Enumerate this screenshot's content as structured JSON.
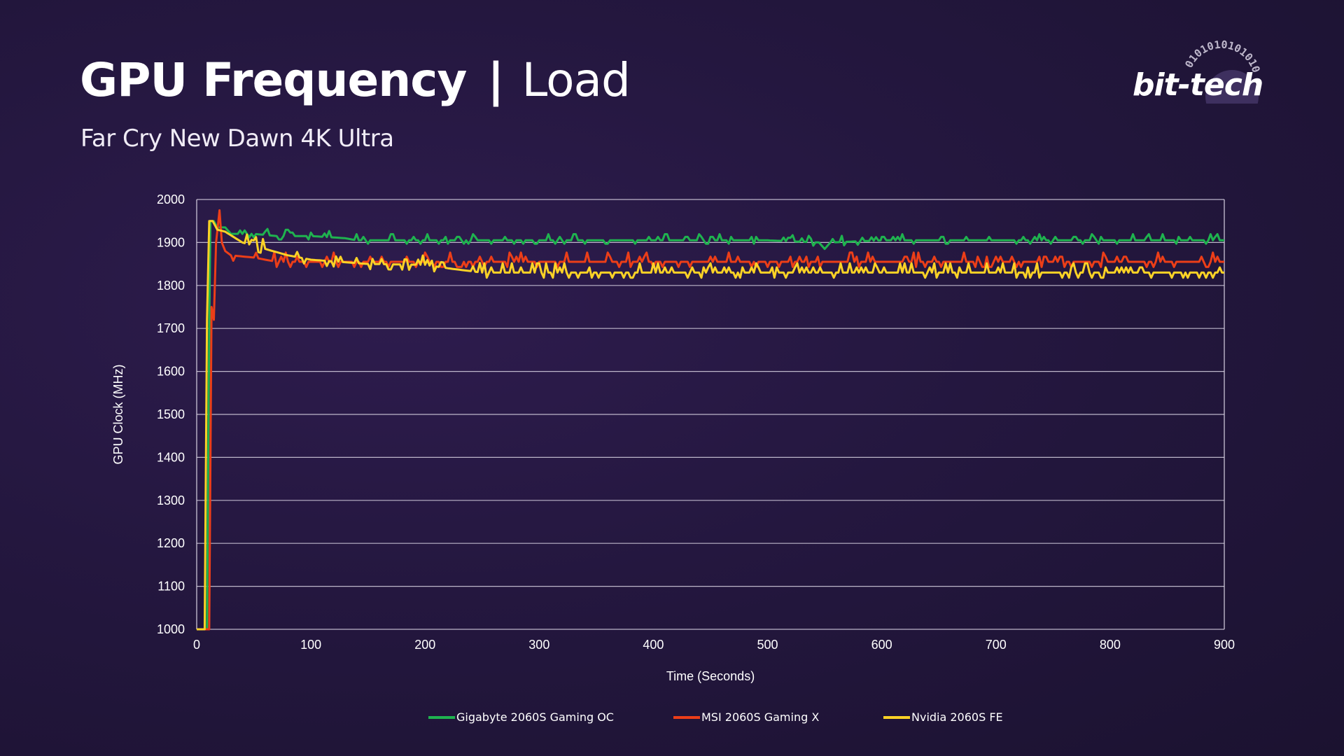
{
  "header": {
    "title_main": "GPU Frequency",
    "title_separator": "|",
    "title_suffix": "Load",
    "subtitle": "Far Cry New Dawn 4K Ultra",
    "logo_text": "bit-tech",
    "logo_ring_text": "0101010101010"
  },
  "colors": {
    "background": "#24173f",
    "gridline": "#ffffff",
    "text": "#ffffff"
  },
  "chart_data": {
    "type": "line",
    "xlabel": "Time (Seconds)",
    "ylabel": "GPU Clock (MHz)",
    "xlim": [
      0,
      900
    ],
    "ylim": [
      1000,
      2000
    ],
    "xticks": [
      0,
      100,
      200,
      300,
      400,
      500,
      600,
      700,
      800,
      900
    ],
    "yticks": [
      1000,
      1100,
      1200,
      1300,
      1400,
      1500,
      1600,
      1700,
      1800,
      1900,
      2000
    ],
    "grid": "horizontal",
    "legend_position": "bottom",
    "series": [
      {
        "name": "Gigabyte 2060S Gaming OC",
        "color": "#1fb34f",
        "points": [
          [
            0,
            1000
          ],
          [
            9,
            1000
          ],
          [
            11,
            1700
          ],
          [
            12,
            1950
          ],
          [
            15,
            1950
          ],
          [
            18,
            1935
          ],
          [
            25,
            1935
          ],
          [
            30,
            1920
          ],
          [
            50,
            1920
          ],
          [
            70,
            1915
          ],
          [
            100,
            1915
          ],
          [
            130,
            1910
          ],
          [
            140,
            1905
          ],
          [
            200,
            1905
          ],
          [
            300,
            1905
          ],
          [
            400,
            1905
          ],
          [
            500,
            1905
          ],
          [
            545,
            1900
          ],
          [
            550,
            1885
          ],
          [
            555,
            1900
          ],
          [
            600,
            1905
          ],
          [
            700,
            1905
          ],
          [
            800,
            1905
          ],
          [
            900,
            1905
          ]
        ]
      },
      {
        "name": "MSI 2060S Gaming X",
        "color": "#ec3e18",
        "points": [
          [
            0,
            1000
          ],
          [
            11,
            1000
          ],
          [
            13,
            1750
          ],
          [
            15,
            1720
          ],
          [
            17,
            1900
          ],
          [
            20,
            1975
          ],
          [
            22,
            1900
          ],
          [
            25,
            1880
          ],
          [
            30,
            1870
          ],
          [
            50,
            1865
          ],
          [
            70,
            1855
          ],
          [
            100,
            1855
          ],
          [
            150,
            1855
          ],
          [
            200,
            1855
          ],
          [
            300,
            1855
          ],
          [
            400,
            1855
          ],
          [
            500,
            1855
          ],
          [
            600,
            1855
          ],
          [
            700,
            1855
          ],
          [
            800,
            1855
          ],
          [
            900,
            1855
          ]
        ]
      },
      {
        "name": "Nvidia 2060S FE",
        "color": "#fbd226",
        "points": [
          [
            0,
            1000
          ],
          [
            7,
            1000
          ],
          [
            9,
            1720
          ],
          [
            11,
            1950
          ],
          [
            14,
            1950
          ],
          [
            18,
            1930
          ],
          [
            25,
            1925
          ],
          [
            40,
            1900
          ],
          [
            60,
            1885
          ],
          [
            80,
            1870
          ],
          [
            100,
            1860
          ],
          [
            150,
            1850
          ],
          [
            200,
            1848
          ],
          [
            220,
            1840
          ],
          [
            250,
            1830
          ],
          [
            300,
            1830
          ],
          [
            400,
            1830
          ],
          [
            500,
            1830
          ],
          [
            600,
            1830
          ],
          [
            700,
            1830
          ],
          [
            800,
            1830
          ],
          [
            900,
            1830
          ]
        ]
      }
    ]
  }
}
